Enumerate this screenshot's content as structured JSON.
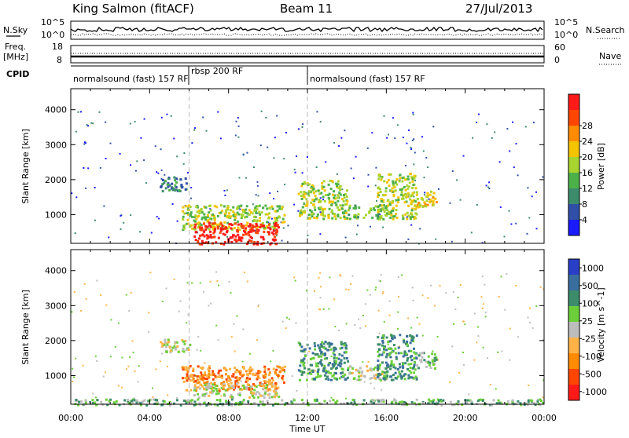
{
  "header": {
    "title": "King Salmon (fitACF)",
    "beam": "Beam 11",
    "date": "27/Jul/2013"
  },
  "strip": {
    "left_labels": [
      "N.Sky",
      "Freq.",
      "[MHz]",
      "CPID"
    ],
    "right_labels": [
      "N.Search",
      "Nave"
    ],
    "sky_ticks": [
      "10^5",
      "10^0"
    ],
    "freq_ticks": [
      "18",
      "8"
    ],
    "search_ticks": [
      "10^5",
      "10^0"
    ],
    "nave_ticks": [
      "60",
      "0"
    ],
    "cpid_labels": [
      {
        "text": "normalsound (fast) 157 RF",
        "start_hour": 0
      },
      {
        "text": "rbsp 200 RF",
        "start_hour": 6
      },
      {
        "text": "normalsound (fast) 157 RF",
        "start_hour": 12
      }
    ],
    "freq_value_mhz": 10.5,
    "nave_value": 30
  },
  "chart_data": [
    {
      "type": "heatmap",
      "name_shown": "Power",
      "xlabel": "Time UT",
      "ylabel": "Slant Range [km]",
      "xlim": [
        0,
        24
      ],
      "ylim": [
        180,
        4600
      ],
      "x_ticks": [
        "00:00",
        "04:00",
        "08:00",
        "12:00",
        "16:00",
        "20:00",
        "00:00"
      ],
      "y_ticks": [
        "1000",
        "2000",
        "3000",
        "4000"
      ],
      "colorbar_label": "Power [dB]",
      "colorbar_ticks": [
        "4",
        "8",
        "12",
        "16",
        "20",
        "24",
        "28"
      ],
      "colorbar_colors": [
        "#1a1aff",
        "#2f4fa8",
        "#3c8c6c",
        "#4db14a",
        "#a8d42f",
        "#f5c400",
        "#ff8c00",
        "#ff4500",
        "#ff1a1a"
      ],
      "regions": [
        {
          "t0": 5.6,
          "t1": 10.8,
          "r0": 600,
          "r1": 1300,
          "level": 4
        },
        {
          "t0": 6.2,
          "t1": 10.5,
          "r0": 180,
          "r1": 800,
          "level": 8
        },
        {
          "t0": 4.5,
          "t1": 6.0,
          "r0": 1700,
          "r1": 2100,
          "level": 2
        },
        {
          "t0": 11.5,
          "t1": 14.0,
          "r0": 900,
          "r1": 2000,
          "level": 4
        },
        {
          "t0": 14.0,
          "t1": 16.0,
          "r0": 900,
          "r1": 1300,
          "level": 3
        },
        {
          "t0": 15.5,
          "t1": 17.5,
          "r0": 900,
          "r1": 2200,
          "level": 4
        },
        {
          "t0": 17.5,
          "t1": 18.5,
          "r0": 1200,
          "r1": 1700,
          "level": 5
        }
      ]
    },
    {
      "type": "heatmap",
      "name_shown": "Velocity",
      "xlabel": "Time UT",
      "ylabel": "Slant Range [km]",
      "xlim": [
        0,
        24
      ],
      "ylim": [
        180,
        4600
      ],
      "x_ticks": [
        "00:00",
        "04:00",
        "08:00",
        "12:00",
        "16:00",
        "20:00",
        "00:00"
      ],
      "y_ticks": [
        "1000",
        "2000",
        "3000",
        "4000"
      ],
      "colorbar_label": "Velocity [m s^-1]",
      "colorbar_ticks": [
        "1000",
        "500",
        "100",
        "25",
        "-25",
        "-100",
        "-500",
        "-1000"
      ],
      "colorbar_colors": [
        "#2a3fc8",
        "#3a6e9e",
        "#3c8c6c",
        "#6ccf3a",
        "#bdbdbd",
        "#ffb347",
        "#ff8c00",
        "#ff4500",
        "#ff1a1a"
      ],
      "regions": [
        {
          "t0": 5.6,
          "t1": 10.8,
          "r0": 600,
          "r1": 1300,
          "level": 6
        },
        {
          "t0": 6.2,
          "t1": 10.5,
          "r0": 400,
          "r1": 800,
          "level": 4
        },
        {
          "t0": 4.5,
          "t1": 6.0,
          "r0": 1700,
          "r1": 2100,
          "level": 4
        },
        {
          "t0": 11.5,
          "t1": 14.0,
          "r0": 900,
          "r1": 2000,
          "level": 2
        },
        {
          "t0": 14.0,
          "t1": 16.0,
          "r0": 900,
          "r1": 1300,
          "level": 4
        },
        {
          "t0": 15.5,
          "t1": 17.5,
          "r0": 900,
          "r1": 2200,
          "level": 2
        },
        {
          "t0": 17.5,
          "t1": 18.5,
          "r0": 1200,
          "r1": 1700,
          "level": 3
        },
        {
          "t0": 0,
          "t1": 24,
          "r0": 180,
          "r1": 350,
          "level": 3
        }
      ]
    }
  ]
}
